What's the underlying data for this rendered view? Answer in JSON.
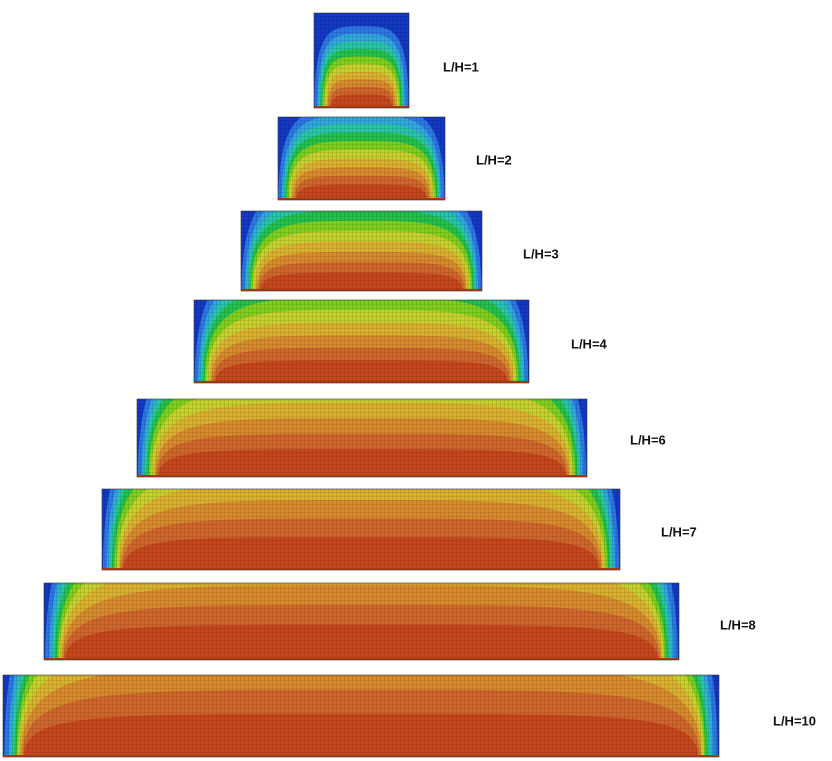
{
  "panels": [
    {
      "label": "L/H=1"
    },
    {
      "label": "L/H=2"
    },
    {
      "label": "L/H=3"
    },
    {
      "label": "L/H=4"
    },
    {
      "label": "L/H=6"
    },
    {
      "label": "L/H=7"
    },
    {
      "label": "L/H=8"
    },
    {
      "label": "L/H=10"
    }
  ]
}
